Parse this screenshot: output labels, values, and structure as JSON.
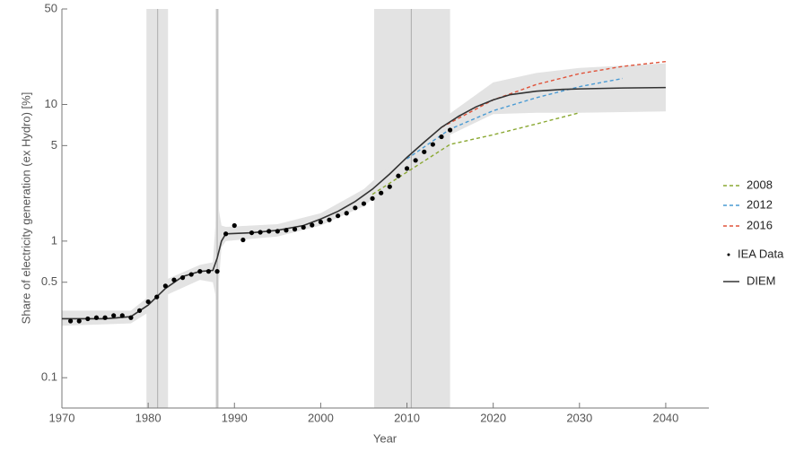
{
  "chart_data": {
    "type": "line",
    "x_label": "Year",
    "y_label": "Share of electricity generation (ex Hydro) [%]",
    "xlim": [
      1970,
      2045
    ],
    "xticks": [
      1970,
      1980,
      1990,
      2000,
      2010,
      2020,
      2030,
      2040
    ],
    "ylim": [
      0.06,
      50
    ],
    "yticks": [
      0.1,
      0.5,
      1,
      5,
      10,
      50
    ],
    "log_y": true,
    "legend": "right",
    "shaded_regions": [
      {
        "start": 1979.8,
        "end": 1982.3,
        "center": 1981.1
      },
      {
        "start": 1987.8,
        "end": 1988.2,
        "center": 1988
      },
      {
        "start": 2006.2,
        "end": 2015,
        "center": 2010.5
      }
    ],
    "band": {
      "color": "#e3e3e3",
      "x": [
        1970,
        1978,
        1980,
        1982,
        1986,
        1987.5,
        1988,
        1988.5,
        1989,
        1995,
        2000,
        2005,
        2010,
        2015,
        2020,
        2025,
        2030,
        2040
      ],
      "lower": [
        0.24,
        0.25,
        0.3,
        0.4,
        0.52,
        0.5,
        0.35,
        0.9,
        1.0,
        1.08,
        1.3,
        1.8,
        3.4,
        6,
        8.5,
        8.7,
        8.7,
        8.9
      ],
      "upper": [
        0.31,
        0.31,
        0.39,
        0.52,
        0.67,
        0.7,
        2.0,
        1.3,
        1.27,
        1.33,
        1.6,
        2.4,
        4.6,
        8.6,
        14.5,
        17,
        18.5,
        20
      ]
    },
    "series": [
      {
        "name": "2008",
        "color": "#8aa832",
        "style": "dashed",
        "x": [
          2006,
          2010,
          2015,
          2020,
          2025,
          2030
        ],
        "values": [
          2.2,
          3.2,
          5.1,
          6.0,
          7.2,
          8.7
        ]
      },
      {
        "name": "2012",
        "color": "#4a9bd4",
        "style": "dashed",
        "x": [
          2010,
          2015,
          2020,
          2025,
          2030,
          2035
        ],
        "values": [
          4.0,
          6.6,
          9.0,
          11.2,
          13.5,
          15.5
        ]
      },
      {
        "name": "2016",
        "color": "#e0533a",
        "style": "dashed",
        "x": [
          2014,
          2020,
          2025,
          2030,
          2035,
          2040
        ],
        "values": [
          6.8,
          10.8,
          14.0,
          16.8,
          19.0,
          20.6
        ]
      },
      {
        "name": "IEA Data",
        "color": "#000000",
        "style": "points",
        "x": [
          1971,
          1972,
          1973,
          1974,
          1975,
          1976,
          1977,
          1978,
          1979,
          1980,
          1981,
          1982,
          1983,
          1984,
          1985,
          1986,
          1987,
          1988,
          1989,
          1990,
          1991,
          1992,
          1993,
          1994,
          1995,
          1996,
          1997,
          1998,
          1999,
          2000,
          2001,
          2002,
          2003,
          2004,
          2005,
          2006,
          2007,
          2008,
          2009,
          2010,
          2011,
          2012,
          2013,
          2014,
          2015
        ],
        "values": [
          0.26,
          0.26,
          0.27,
          0.275,
          0.275,
          0.285,
          0.285,
          0.275,
          0.31,
          0.36,
          0.39,
          0.47,
          0.52,
          0.54,
          0.57,
          0.6,
          0.6,
          0.6,
          1.13,
          1.3,
          1.02,
          1.15,
          1.16,
          1.18,
          1.18,
          1.2,
          1.22,
          1.26,
          1.31,
          1.38,
          1.43,
          1.53,
          1.6,
          1.75,
          1.88,
          2.05,
          2.25,
          2.5,
          3.0,
          3.4,
          3.9,
          4.5,
          5.1,
          5.8,
          6.5
        ]
      },
      {
        "name": "DIEM",
        "color": "#333333",
        "style": "solid",
        "x": [
          1970,
          1975,
          1978,
          1980,
          1982,
          1984,
          1986,
          1987.5,
          1988,
          1988.5,
          1989,
          1992,
          1995,
          1998,
          2000,
          2002,
          2004,
          2006,
          2008,
          2010,
          2012,
          2014,
          2016,
          2018,
          2020,
          2022,
          2025,
          2028,
          2030,
          2035,
          2040
        ],
        "values": [
          0.27,
          0.27,
          0.28,
          0.34,
          0.45,
          0.55,
          0.6,
          0.61,
          0.75,
          1.0,
          1.13,
          1.15,
          1.2,
          1.3,
          1.45,
          1.65,
          1.95,
          2.4,
          3.1,
          4.1,
          5.3,
          6.8,
          8.2,
          9.6,
          10.8,
          11.8,
          12.5,
          12.9,
          13.0,
          13.2,
          13.3
        ]
      }
    ]
  }
}
